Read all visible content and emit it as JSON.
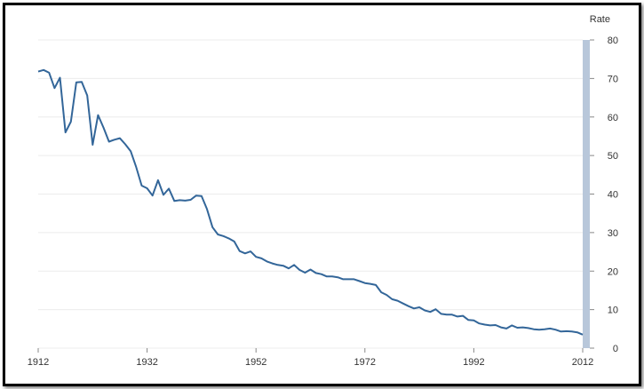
{
  "chart_data": {
    "type": "line",
    "title": "",
    "xlabel": "",
    "ylabel": "Rate",
    "xlim": [
      1912,
      2012
    ],
    "ylim": [
      0,
      80
    ],
    "x_ticks": [
      "1912",
      "1932",
      "1952",
      "1972",
      "1992",
      "2012"
    ],
    "y_ticks": [
      "0",
      "10",
      "20",
      "30",
      "40",
      "50",
      "60",
      "70",
      "80"
    ],
    "grid": true,
    "y_axis_side": "right",
    "colors": {
      "line": "#336699",
      "axis_band": "#b8c7da",
      "grid": "#ececec"
    },
    "series": [
      {
        "x": [
          1912,
          1913,
          1914,
          1915,
          1916,
          1917,
          1918,
          1919,
          1920,
          1921,
          1922,
          1923,
          1924,
          1925,
          1926,
          1927,
          1928,
          1929,
          1930,
          1931,
          1932,
          1933,
          1934,
          1935,
          1936,
          1937,
          1938,
          1939,
          1940,
          1941,
          1942,
          1943,
          1944,
          1945,
          1946,
          1947,
          1948,
          1949,
          1950,
          1951,
          1952,
          1953,
          1954,
          1955,
          1956,
          1957,
          1958,
          1959,
          1960,
          1961,
          1962,
          1963,
          1964,
          1965,
          1966,
          1967,
          1968,
          1969,
          1970,
          1971,
          1972,
          1973,
          1974,
          1975,
          1976,
          1977,
          1978,
          1979,
          1980,
          1981,
          1982,
          1983,
          1984,
          1985,
          1986,
          1987,
          1988,
          1989,
          1990,
          1991,
          1992,
          1993,
          1994,
          1995,
          1996,
          1997,
          1998,
          1999,
          2000,
          2001,
          2002,
          2003,
          2004,
          2005,
          2006,
          2007,
          2008,
          2009,
          2010,
          2011,
          2012
        ],
        "values": [
          71.8,
          72.2,
          71.5,
          67.5,
          70.2,
          56.0,
          58.8,
          69.0,
          69.1,
          65.6,
          52.8,
          60.5,
          57.2,
          53.6,
          54.1,
          54.5,
          52.9,
          51.1,
          47.0,
          42.2,
          41.5,
          39.6,
          43.6,
          39.8,
          41.4,
          38.2,
          38.4,
          38.3,
          38.5,
          39.6,
          39.5,
          36.1,
          31.4,
          29.5,
          29.1,
          28.5,
          27.7,
          25.2,
          24.6,
          25.1,
          23.7,
          23.3,
          22.5,
          22.0,
          21.6,
          21.4,
          20.7,
          21.6,
          20.3,
          19.6,
          20.4,
          19.5,
          19.2,
          18.6,
          18.6,
          18.4,
          17.9,
          17.9,
          17.9,
          17.4,
          16.9,
          16.7,
          16.4,
          14.5,
          13.8,
          12.7,
          12.3,
          11.6,
          10.9,
          10.3,
          10.6,
          9.8,
          9.4,
          10.1,
          8.9,
          8.7,
          8.7,
          8.2,
          8.4,
          7.3,
          7.2,
          6.4,
          6.1,
          5.9,
          6.0,
          5.4,
          5.1,
          5.9,
          5.3,
          5.4,
          5.2,
          4.9,
          4.8,
          4.9,
          5.1,
          4.8,
          4.3,
          4.4,
          4.3,
          4.1,
          3.5
        ]
      }
    ]
  }
}
